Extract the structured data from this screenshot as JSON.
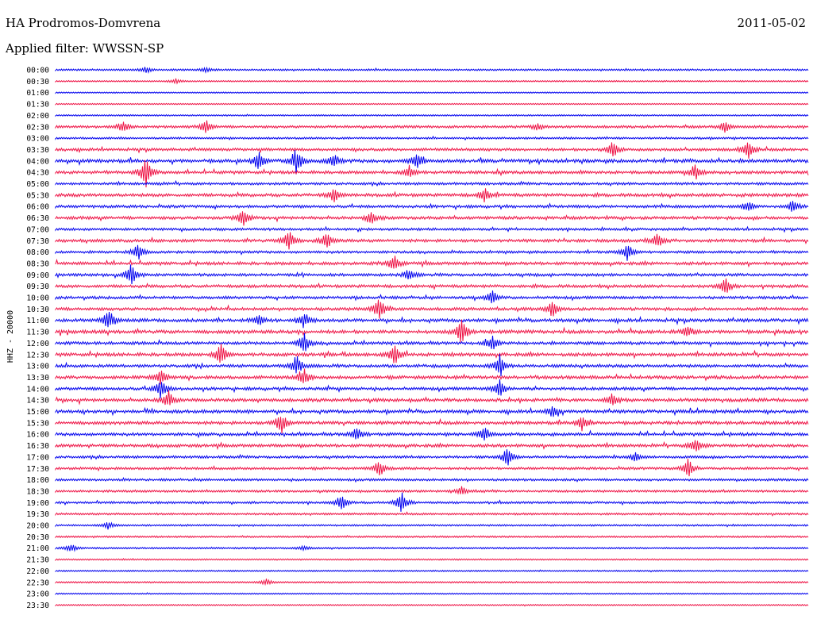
{
  "station_title": "HA Prodromos-Domvrena",
  "date": "2011-05-02",
  "filter_label": "Applied filter: WWSSN-SP",
  "channel_label": "HHZ - 20000",
  "colors": {
    "trace_a": "#0000ee",
    "trace_b": "#ee1144",
    "text": "#000000"
  },
  "chart_data": {
    "type": "line",
    "ylabel": "HHZ - 20000",
    "row_labels": [
      "00:00",
      "00:30",
      "01:00",
      "01:30",
      "02:00",
      "02:30",
      "03:00",
      "03:30",
      "04:00",
      "04:30",
      "05:00",
      "05:30",
      "06:00",
      "06:30",
      "07:00",
      "07:30",
      "08:00",
      "08:30",
      "09:00",
      "09:30",
      "10:00",
      "10:30",
      "11:00",
      "11:30",
      "12:00",
      "12:30",
      "13:00",
      "13:30",
      "14:00",
      "14:30",
      "15:00",
      "15:30",
      "16:00",
      "16:30",
      "17:00",
      "17:30",
      "18:00",
      "18:30",
      "19:00",
      "19:30",
      "20:00",
      "20:30",
      "21:00",
      "21:30",
      "22:00",
      "22:30",
      "23:00",
      "23:30"
    ],
    "row_activity": [
      0.3,
      0.15,
      0.1,
      0.1,
      0.2,
      0.6,
      0.4,
      0.7,
      1.0,
      0.8,
      0.6,
      0.9,
      0.7,
      0.8,
      0.6,
      0.8,
      0.6,
      0.8,
      0.7,
      0.8,
      0.7,
      0.8,
      0.9,
      1.0,
      0.8,
      0.9,
      0.8,
      0.9,
      0.8,
      0.9,
      0.9,
      0.9,
      0.8,
      0.8,
      0.6,
      0.6,
      0.5,
      0.5,
      0.5,
      0.4,
      0.3,
      0.3,
      0.25,
      0.2,
      0.2,
      0.2,
      0.15,
      0.15
    ],
    "events": [
      {
        "row": 0,
        "t": 0.12,
        "amp": 4
      },
      {
        "row": 0,
        "t": 0.2,
        "amp": 3
      },
      {
        "row": 1,
        "t": 0.16,
        "amp": 3
      },
      {
        "row": 5,
        "t": 0.09,
        "amp": 10
      },
      {
        "row": 5,
        "t": 0.2,
        "amp": 9
      },
      {
        "row": 5,
        "t": 0.64,
        "amp": 5
      },
      {
        "row": 5,
        "t": 0.89,
        "amp": 7
      },
      {
        "row": 7,
        "t": 0.74,
        "amp": 12
      },
      {
        "row": 7,
        "t": 0.92,
        "amp": 12
      },
      {
        "row": 8,
        "t": 0.27,
        "amp": 14
      },
      {
        "row": 8,
        "t": 0.32,
        "amp": 18
      },
      {
        "row": 8,
        "t": 0.37,
        "amp": 10
      },
      {
        "row": 8,
        "t": 0.48,
        "amp": 12
      },
      {
        "row": 9,
        "t": 0.12,
        "amp": 22
      },
      {
        "row": 9,
        "t": 0.47,
        "amp": 8
      },
      {
        "row": 9,
        "t": 0.85,
        "amp": 10
      },
      {
        "row": 11,
        "t": 0.37,
        "amp": 9
      },
      {
        "row": 11,
        "t": 0.57,
        "amp": 9
      },
      {
        "row": 12,
        "t": 0.92,
        "amp": 8
      },
      {
        "row": 12,
        "t": 0.98,
        "amp": 9
      },
      {
        "row": 13,
        "t": 0.25,
        "amp": 14
      },
      {
        "row": 13,
        "t": 0.42,
        "amp": 8
      },
      {
        "row": 15,
        "t": 0.31,
        "amp": 14
      },
      {
        "row": 15,
        "t": 0.36,
        "amp": 12
      },
      {
        "row": 15,
        "t": 0.8,
        "amp": 9
      },
      {
        "row": 16,
        "t": 0.11,
        "amp": 12
      },
      {
        "row": 16,
        "t": 0.76,
        "amp": 12
      },
      {
        "row": 17,
        "t": 0.45,
        "amp": 10
      },
      {
        "row": 18,
        "t": 0.1,
        "amp": 16
      },
      {
        "row": 18,
        "t": 0.47,
        "amp": 8
      },
      {
        "row": 19,
        "t": 0.89,
        "amp": 12
      },
      {
        "row": 20,
        "t": 0.58,
        "amp": 9
      },
      {
        "row": 21,
        "t": 0.43,
        "amp": 16
      },
      {
        "row": 21,
        "t": 0.66,
        "amp": 10
      },
      {
        "row": 22,
        "t": 0.07,
        "amp": 14
      },
      {
        "row": 22,
        "t": 0.27,
        "amp": 8
      },
      {
        "row": 22,
        "t": 0.33,
        "amp": 10
      },
      {
        "row": 23,
        "t": 0.54,
        "amp": 20
      },
      {
        "row": 23,
        "t": 0.84,
        "amp": 8
      },
      {
        "row": 24,
        "t": 0.33,
        "amp": 14
      },
      {
        "row": 24,
        "t": 0.58,
        "amp": 10
      },
      {
        "row": 25,
        "t": 0.22,
        "amp": 16
      },
      {
        "row": 25,
        "t": 0.45,
        "amp": 14
      },
      {
        "row": 26,
        "t": 0.32,
        "amp": 14
      },
      {
        "row": 26,
        "t": 0.59,
        "amp": 16
      },
      {
        "row": 27,
        "t": 0.14,
        "amp": 12
      },
      {
        "row": 27,
        "t": 0.33,
        "amp": 12
      },
      {
        "row": 28,
        "t": 0.14,
        "amp": 14
      },
      {
        "row": 28,
        "t": 0.59,
        "amp": 12
      },
      {
        "row": 29,
        "t": 0.15,
        "amp": 12
      },
      {
        "row": 29,
        "t": 0.74,
        "amp": 8
      },
      {
        "row": 30,
        "t": 0.66,
        "amp": 8
      },
      {
        "row": 31,
        "t": 0.3,
        "amp": 14
      },
      {
        "row": 31,
        "t": 0.7,
        "amp": 10
      },
      {
        "row": 32,
        "t": 0.4,
        "amp": 10
      },
      {
        "row": 32,
        "t": 0.57,
        "amp": 10
      },
      {
        "row": 33,
        "t": 0.85,
        "amp": 10
      },
      {
        "row": 34,
        "t": 0.6,
        "amp": 14
      },
      {
        "row": 34,
        "t": 0.77,
        "amp": 7
      },
      {
        "row": 35,
        "t": 0.43,
        "amp": 12
      },
      {
        "row": 35,
        "t": 0.84,
        "amp": 14
      },
      {
        "row": 37,
        "t": 0.54,
        "amp": 6
      },
      {
        "row": 38,
        "t": 0.38,
        "amp": 10
      },
      {
        "row": 38,
        "t": 0.46,
        "amp": 14
      },
      {
        "row": 40,
        "t": 0.07,
        "amp": 5
      },
      {
        "row": 42,
        "t": 0.02,
        "amp": 6
      },
      {
        "row": 42,
        "t": 0.33,
        "amp": 3
      },
      {
        "row": 45,
        "t": 0.28,
        "amp": 4
      }
    ]
  }
}
